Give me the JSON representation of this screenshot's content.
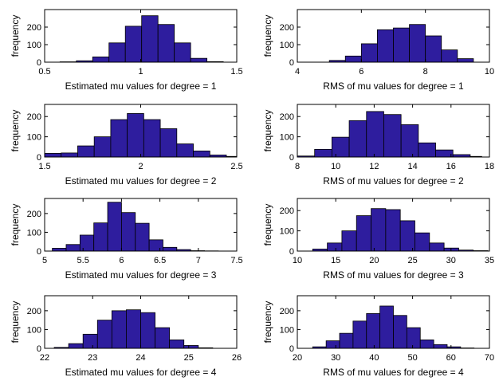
{
  "ylabel": "frequency",
  "bar_color": "#2E1D9E",
  "bar_edge": "#000000",
  "chart_data": [
    {
      "type": "bar",
      "id": "est1",
      "xlabel": "Estimated mu values for degree = 1",
      "ylabel": "frequency",
      "xlim": [
        0.5,
        1.5
      ],
      "ylim": [
        0,
        300
      ],
      "xticks": [
        0.5,
        1,
        1.5
      ],
      "xtick_labels": [
        "0.5",
        "1",
        "1.5"
      ],
      "yticks": [
        0,
        100,
        200
      ],
      "ytick_labels": [
        "0",
        "100",
        "200"
      ],
      "bin_edges": [
        0.58,
        0.665,
        0.75,
        0.835,
        0.92,
        1.005,
        1.09,
        1.175,
        1.26,
        1.345,
        1.43
      ],
      "values": [
        2,
        8,
        30,
        110,
        205,
        265,
        215,
        110,
        22,
        3
      ]
    },
    {
      "type": "bar",
      "id": "rms1",
      "xlabel": "RMS of mu values for degree = 1",
      "ylabel": "frequency",
      "xlim": [
        4,
        10
      ],
      "ylim": [
        0,
        300
      ],
      "xticks": [
        4,
        6,
        8,
        10
      ],
      "xtick_labels": [
        "4",
        "6",
        "8",
        "10"
      ],
      "yticks": [
        0,
        100,
        200
      ],
      "ytick_labels": [
        "0",
        "100",
        "200"
      ],
      "bin_edges": [
        5.0,
        5.5,
        6.0,
        6.5,
        7.0,
        7.5,
        8.0,
        8.5,
        9.0,
        9.5
      ],
      "values": [
        10,
        35,
        105,
        185,
        195,
        215,
        150,
        70,
        20
      ]
    },
    {
      "type": "bar",
      "id": "est2",
      "xlabel": "Estimated mu values for degree = 2",
      "ylabel": "frequency",
      "xlim": [
        1.5,
        2.5
      ],
      "ylim": [
        0,
        260
      ],
      "xticks": [
        1.5,
        2,
        2.5
      ],
      "xtick_labels": [
        "1.5",
        "2",
        "2.5"
      ],
      "yticks": [
        0,
        100,
        200
      ],
      "ytick_labels": [
        "0",
        "100",
        "200"
      ],
      "bin_edges": [
        1.5,
        1.586,
        1.672,
        1.758,
        1.844,
        1.93,
        2.016,
        2.102,
        2.188,
        2.274,
        2.36,
        2.446,
        2.5
      ],
      "values": [
        18,
        20,
        55,
        100,
        185,
        215,
        185,
        140,
        65,
        30,
        10,
        3
      ]
    },
    {
      "type": "bar",
      "id": "rms2",
      "xlabel": "RMS of mu values for degree = 2",
      "ylabel": "frequency",
      "xlim": [
        8,
        18
      ],
      "ylim": [
        0,
        260
      ],
      "xticks": [
        8,
        10,
        12,
        14,
        16,
        18
      ],
      "xtick_labels": [
        "8",
        "10",
        "12",
        "14",
        "16",
        "18"
      ],
      "yticks": [
        0,
        100,
        200
      ],
      "ytick_labels": [
        "0",
        "100",
        "200"
      ],
      "bin_edges": [
        8.0,
        8.9,
        9.8,
        10.7,
        11.6,
        12.5,
        13.4,
        14.3,
        15.2,
        16.1,
        17.0,
        17.6
      ],
      "values": [
        5,
        38,
        98,
        180,
        225,
        210,
        160,
        70,
        35,
        12,
        3
      ]
    },
    {
      "type": "bar",
      "id": "est3",
      "xlabel": "Estimated mu values for degree = 3",
      "ylabel": "frequency",
      "xlim": [
        5,
        7.5
      ],
      "ylim": [
        0,
        280
      ],
      "xticks": [
        5,
        5.5,
        6,
        6.5,
        7,
        7.5
      ],
      "xtick_labels": [
        "5",
        "5.5",
        "6",
        "6.5",
        "7",
        "7.5"
      ],
      "yticks": [
        0,
        100,
        200
      ],
      "ytick_labels": [
        "0",
        "100",
        "200"
      ],
      "bin_edges": [
        5.1,
        5.28,
        5.46,
        5.64,
        5.82,
        6.0,
        6.18,
        6.36,
        6.54,
        6.72,
        6.9,
        7.08,
        7.26
      ],
      "values": [
        15,
        35,
        85,
        150,
        260,
        205,
        148,
        60,
        20,
        8,
        2,
        1
      ]
    },
    {
      "type": "bar",
      "id": "rms3",
      "xlabel": "RMS of mu values for degree = 3",
      "ylabel": "frequency",
      "xlim": [
        10,
        35
      ],
      "ylim": [
        0,
        260
      ],
      "xticks": [
        10,
        15,
        20,
        25,
        30,
        35
      ],
      "xtick_labels": [
        "10",
        "15",
        "20",
        "25",
        "30",
        "35"
      ],
      "yticks": [
        0,
        100,
        200
      ],
      "ytick_labels": [
        "0",
        "100",
        "200"
      ],
      "bin_edges": [
        12.0,
        13.9,
        15.8,
        17.7,
        19.6,
        21.5,
        23.4,
        25.3,
        27.2,
        29.1,
        31.0,
        32.9,
        34.8
      ],
      "values": [
        10,
        40,
        100,
        175,
        210,
        205,
        150,
        90,
        40,
        15,
        5,
        2
      ]
    },
    {
      "type": "bar",
      "id": "est4",
      "xlabel": "Estimated mu values for degree = 4",
      "ylabel": "frequency",
      "xlim": [
        22,
        26
      ],
      "ylim": [
        0,
        280
      ],
      "xticks": [
        22,
        23,
        24,
        25,
        26
      ],
      "xtick_labels": [
        "22",
        "23",
        "24",
        "25",
        "26"
      ],
      "yticks": [
        0,
        100,
        200
      ],
      "ytick_labels": [
        "0",
        "100",
        "200"
      ],
      "bin_edges": [
        22.2,
        22.5,
        22.8,
        23.1,
        23.4,
        23.7,
        24.0,
        24.3,
        24.6,
        24.9,
        25.2,
        25.5
      ],
      "values": [
        5,
        25,
        75,
        150,
        200,
        205,
        190,
        110,
        45,
        15,
        3
      ]
    },
    {
      "type": "bar",
      "id": "rms4",
      "xlabel": "RMS of mu values for degree = 4",
      "ylabel": "frequency",
      "xlim": [
        20,
        70
      ],
      "ylim": [
        0,
        280
      ],
      "xticks": [
        20,
        30,
        40,
        50,
        60,
        70
      ],
      "xtick_labels": [
        "20",
        "30",
        "40",
        "50",
        "60",
        "70"
      ],
      "yticks": [
        0,
        100,
        200
      ],
      "ytick_labels": [
        "0",
        "100",
        "200"
      ],
      "bin_edges": [
        24.0,
        27.5,
        31.0,
        34.5,
        38.0,
        41.5,
        45.0,
        48.5,
        52.0,
        55.5,
        59.0,
        62.5,
        66.0
      ],
      "values": [
        8,
        40,
        80,
        145,
        185,
        225,
        175,
        110,
        45,
        20,
        8,
        2
      ]
    }
  ]
}
